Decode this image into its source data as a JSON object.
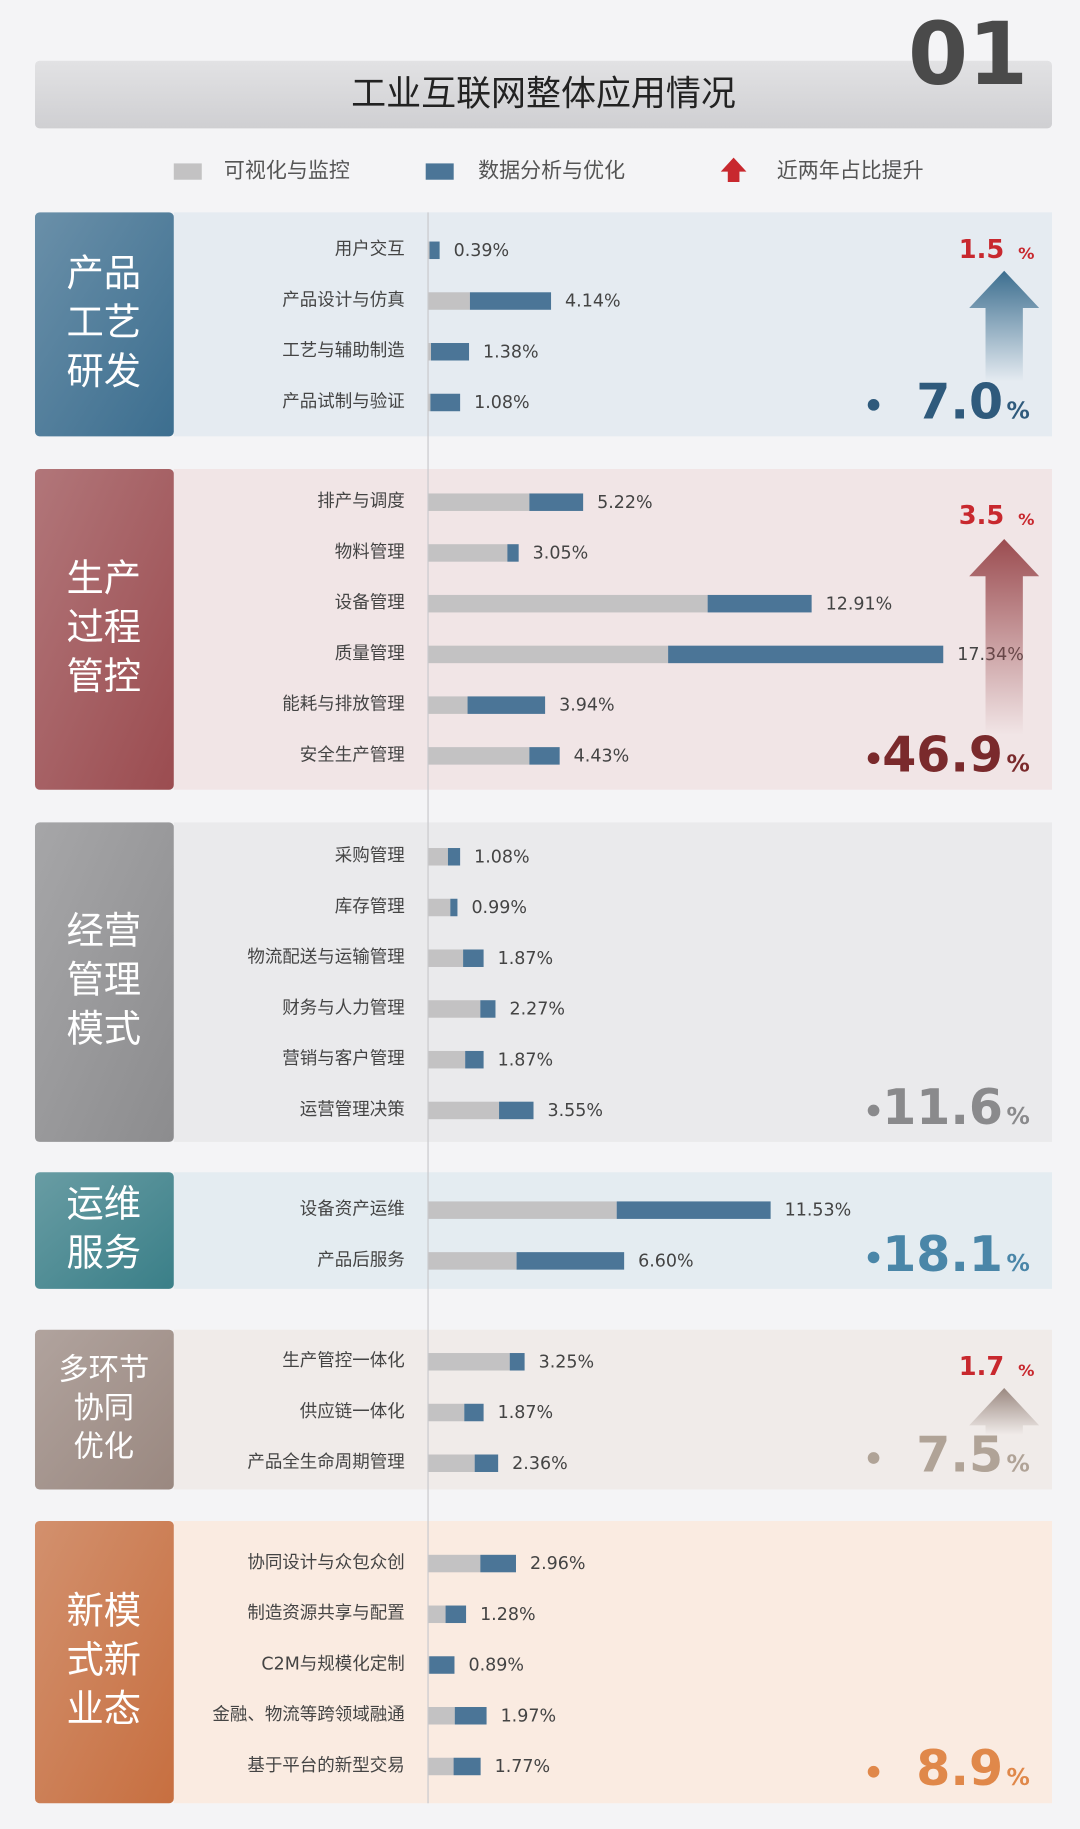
{
  "chart_data": {
    "type": "stacked-barh",
    "title": "工业互联网整体应用情况",
    "badge": "01",
    "series": [
      {
        "name": "可视化与监控",
        "color": "#c3c2c3"
      },
      {
        "name": "数据分析与优化",
        "color": "#4b7597"
      }
    ],
    "trend_legend": "近两年占比提升",
    "trend_color": "#c8282e",
    "unit": "%",
    "xlim": [
      0,
      21
    ],
    "groups": [
      {
        "name": [
          "产品",
          "工艺",
          "研发"
        ],
        "color": "#3c6e8f",
        "panel": "#e5ebf1",
        "accent": "#2f5a7c",
        "share": 7.0,
        "share_label": "7.0",
        "increase": 1.5,
        "categories": [
          "用户交互",
          "产品设计与仿真",
          "工艺与辅助制造",
          "产品试制与验证"
        ],
        "visual": [
          0.05,
          1.41,
          0.1,
          0.08
        ],
        "analysis": [
          0.34,
          2.73,
          1.28,
          1.0
        ],
        "values": [
          0.39,
          4.14,
          1.38,
          1.08
        ],
        "value_labels": [
          "0.39%",
          "4.14%",
          "1.38%",
          "1.08%"
        ]
      },
      {
        "name": [
          "生产",
          "过程",
          "管控"
        ],
        "color": "#9b4c50",
        "panel": "#f1e5e6",
        "accent": "#7a2a2c",
        "share": 46.9,
        "share_label": "46.9",
        "increase": 3.5,
        "categories": [
          "排产与调度",
          "物料管理",
          "设备管理",
          "质量管理",
          "能耗与排放管理",
          "安全生产管理"
        ],
        "visual": [
          3.41,
          2.67,
          9.41,
          8.08,
          1.33,
          3.41
        ],
        "analysis": [
          1.81,
          0.38,
          3.5,
          9.26,
          2.61,
          1.02
        ],
        "values": [
          5.22,
          3.05,
          12.91,
          17.34,
          3.94,
          4.43
        ],
        "value_labels": [
          "5.22%",
          "3.05%",
          "12.91%",
          "17.34%",
          "3.94%",
          "4.43%"
        ]
      },
      {
        "name": [
          "经营",
          "管理",
          "模式"
        ],
        "color": "#8c8c8e",
        "panel": "#eaeaec",
        "accent": "#8a8a8c",
        "share": 11.6,
        "share_label": "11.6",
        "increase": null,
        "categories": [
          "采购管理",
          "库存管理",
          "物流配送与运输管理",
          "财务与人力管理",
          "营销与客户管理",
          "运营管理决策"
        ],
        "visual": [
          0.67,
          0.75,
          1.18,
          1.76,
          1.25,
          2.39
        ],
        "analysis": [
          0.41,
          0.24,
          0.69,
          0.51,
          0.62,
          1.16
        ],
        "values": [
          1.08,
          0.99,
          1.87,
          2.27,
          1.87,
          3.55
        ],
        "value_labels": [
          "1.08%",
          "0.99%",
          "1.87%",
          "2.27%",
          "1.87%",
          "3.55%"
        ]
      },
      {
        "name": [
          "运维",
          "服务"
        ],
        "color": "#3a7f88",
        "panel": "#e4ecf1",
        "accent": "#4a86a8",
        "share": 18.1,
        "share_label": "18.1",
        "increase": null,
        "categories": [
          "设备资产运维",
          "产品后服务"
        ],
        "visual": [
          6.35,
          2.98
        ],
        "analysis": [
          5.18,
          3.62
        ],
        "values": [
          11.53,
          6.6
        ],
        "value_labels": [
          "11.53%",
          "6.60%"
        ]
      },
      {
        "name": [
          "多环节",
          "协同",
          "优化"
        ],
        "color": "#9a8880",
        "panel": "#f0ebe9",
        "accent": "#b0a397",
        "share": 7.5,
        "share_label": "7.5",
        "increase": 1.7,
        "categories": [
          "生产管控一体化",
          "供应链一体化",
          "产品全生命周期管理"
        ],
        "visual": [
          2.75,
          1.22,
          1.57
        ],
        "analysis": [
          0.5,
          0.65,
          0.79
        ],
        "values": [
          3.25,
          1.87,
          2.36
        ],
        "value_labels": [
          "3.25%",
          "1.87%",
          "2.36%"
        ]
      },
      {
        "name": [
          "新模",
          "式新",
          "业态"
        ],
        "color": "#c76f40",
        "panel": "#faebe1",
        "accent": "#e0884a",
        "share": 8.9,
        "share_label": "8.9",
        "increase": null,
        "categories": [
          "协同设计与众包众创",
          "制造资源共享与配置",
          "C2M与规模化定制",
          "金融、物流等跨领域融通",
          "基于平台的新型交易"
        ],
        "visual": [
          1.76,
          0.59,
          0.04,
          0.9,
          0.86
        ],
        "analysis": [
          1.2,
          0.69,
          0.85,
          1.07,
          0.91
        ],
        "values": [
          2.96,
          1.28,
          0.89,
          1.97,
          1.77
        ],
        "value_labels": [
          "2.96%",
          "1.28%",
          "0.89%",
          "1.97%",
          "1.77%"
        ]
      }
    ]
  }
}
